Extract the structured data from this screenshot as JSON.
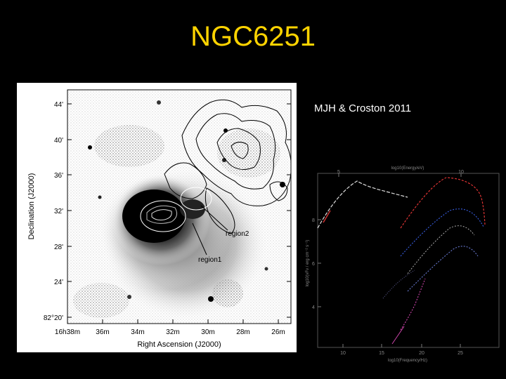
{
  "slide": {
    "title": "NGC6251",
    "credit": "MJH & Croston 2011",
    "title_color": "#ffd400"
  },
  "sky_map": {
    "xlabel": "Right Ascension (J2000)",
    "ylabel": "Declination (J2000)",
    "dec_ticks": [
      "44'",
      "40'",
      "36'",
      "32'",
      "28'",
      "24'",
      "82°20'"
    ],
    "ra_ticks": [
      "16h38m",
      "36m",
      "34m",
      "32m",
      "30m",
      "28m",
      "26m"
    ],
    "labels": {
      "region1": "region1",
      "region2": "region2"
    }
  },
  "sed_plot": {
    "top_axis_label": "log10(Energy/eV)",
    "top_ticks": [
      "5",
      "10"
    ],
    "bottom_axis_label": "log10(Frequency/Hz)",
    "bottom_ticks": [
      "10",
      "15",
      "20",
      "25"
    ],
    "ylabel": "log10(νFν / erg cm⁻² s⁻¹)",
    "y_ticks": [
      "8",
      "6",
      "4"
    ]
  }
}
